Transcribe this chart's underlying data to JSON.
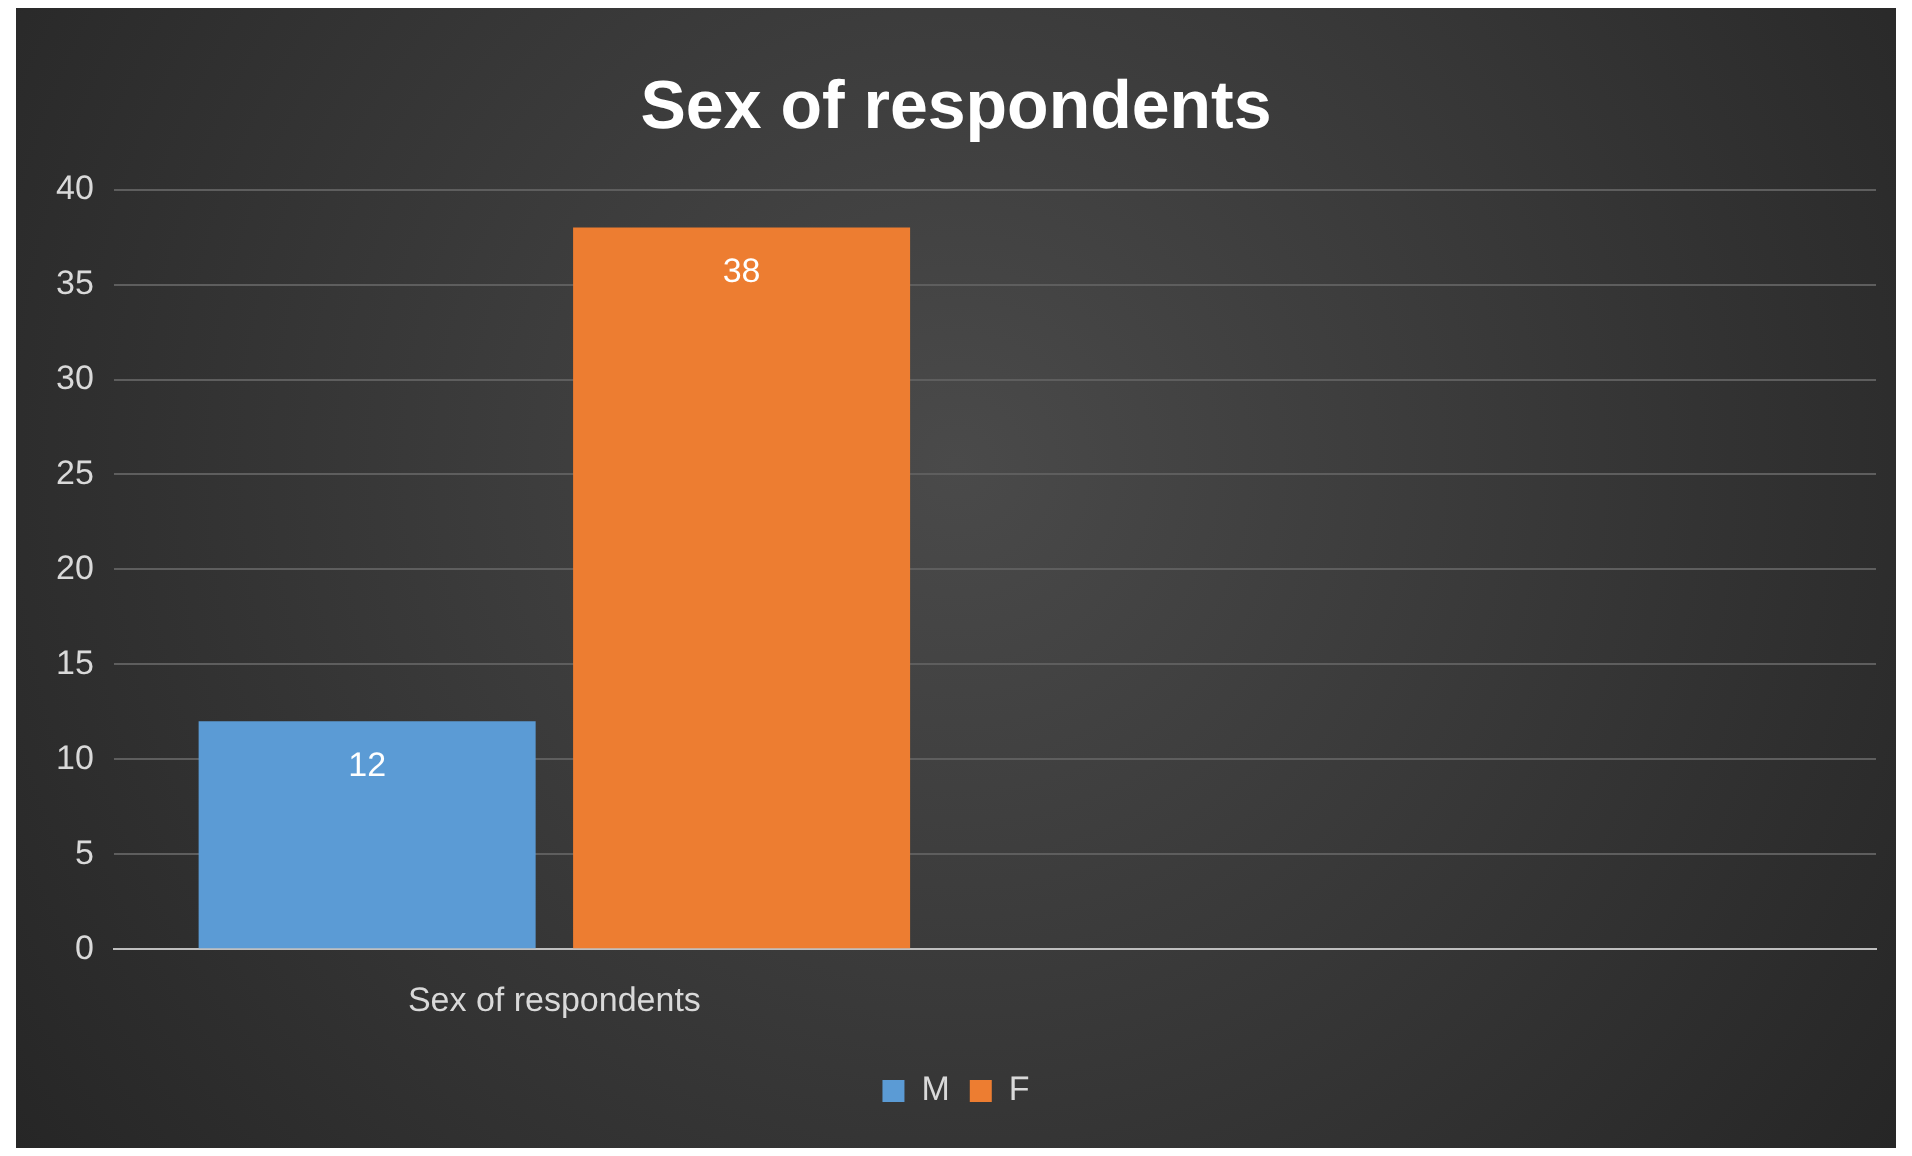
{
  "chart_data": {
    "type": "bar",
    "title": "Sex of respondents",
    "categories": [
      "Sex of respondents",
      null
    ],
    "series": [
      {
        "name": "M",
        "color": "#5b9bd5",
        "values": [
          12,
          null
        ]
      },
      {
        "name": "F",
        "color": "#ed7d31",
        "values": [
          38,
          null
        ]
      }
    ],
    "ylim": [
      0,
      40
    ],
    "yticks": [
      0,
      5,
      10,
      15,
      20,
      25,
      30,
      35,
      40
    ],
    "grid": "y",
    "legend": "bottom",
    "data_labels": true
  }
}
